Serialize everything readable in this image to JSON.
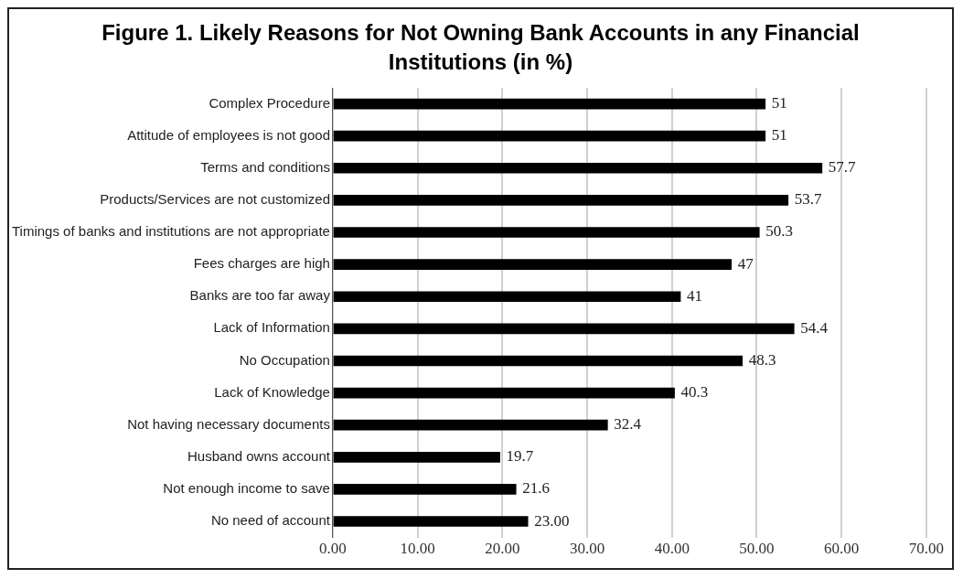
{
  "chart_data": {
    "type": "bar",
    "orientation": "horizontal",
    "title": "Figure 1. Likely Reasons for Not Owning Bank Accounts in any Financial Institutions (in %)",
    "categories": [
      "Complex Procedure",
      "Attitude of employees is not good",
      "Terms and conditions",
      "Products/Services are not customized",
      "Timings of banks and institutions are not appropriate",
      "Fees charges are high",
      "Banks are too far away",
      "Lack of Information",
      "No Occupation",
      "Lack of Knowledge",
      "Not having necessary documents",
      "Husband owns account",
      "Not enough income to save",
      "No need of account"
    ],
    "values": [
      51,
      51,
      57.7,
      53.7,
      50.3,
      47,
      41,
      54.4,
      48.3,
      40.3,
      32.4,
      19.7,
      21.6,
      23
    ],
    "value_labels": [
      "51",
      "51",
      "57.7",
      "53.7",
      "50.3",
      "47",
      "41",
      "54.4",
      "48.3",
      "40.3",
      "32.4",
      "19.7",
      "21.6",
      "23.00"
    ],
    "color": "#000000",
    "xlim": [
      0,
      70
    ],
    "xticks": [
      {
        "value": 0,
        "label": "0.00"
      },
      {
        "value": 10,
        "label": "10.00"
      },
      {
        "value": 20,
        "label": "20.00"
      },
      {
        "value": 30,
        "label": "30.00"
      },
      {
        "value": 40,
        "label": "40.00"
      },
      {
        "value": 50,
        "label": "50.00"
      },
      {
        "value": 60,
        "label": "60.00"
      },
      {
        "value": 70,
        "label": "70.00"
      }
    ],
    "grid": "x",
    "legend": false
  }
}
